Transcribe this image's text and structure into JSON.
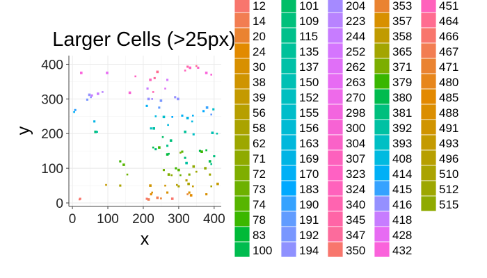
{
  "chart_data": {
    "type": "scatter",
    "title": "Larger Cells (>25px)",
    "xlabel": "x",
    "ylabel": "y",
    "xlim": [
      -10,
      420
    ],
    "ylim": [
      -10,
      425
    ],
    "x_ticks": [
      "0",
      "100",
      "200",
      "300",
      "400"
    ],
    "y_ticks": [
      "0",
      "100",
      "200",
      "300",
      "400"
    ],
    "grid": true,
    "legend_placement": "right",
    "legend_entries": [
      "12",
      "14",
      "20",
      "24",
      "30",
      "38",
      "39",
      "56",
      "58",
      "62",
      "71",
      "72",
      "73",
      "74",
      "78",
      "83",
      "100",
      "101",
      "109",
      "115",
      "135",
      "137",
      "150",
      "152",
      "155",
      "156",
      "163",
      "169",
      "170",
      "183",
      "190",
      "191",
      "192",
      "194",
      "204",
      "223",
      "244",
      "252",
      "262",
      "263",
      "270",
      "298",
      "300",
      "304",
      "307",
      "323",
      "324",
      "340",
      "345",
      "347",
      "350",
      "353",
      "357",
      "358",
      "365",
      "371",
      "379",
      "380",
      "381",
      "392",
      "393",
      "408",
      "414",
      "415",
      "416",
      "418",
      "428",
      "432",
      "451",
      "464",
      "466",
      "467",
      "471",
      "480",
      "485",
      "488",
      "491",
      "493",
      "496",
      "510",
      "512",
      "515"
    ],
    "legend_colors": [
      "#F8766D",
      "#F27D52",
      "#EA8331",
      "#E28A00",
      "#D89000",
      "#CF9400",
      "#C49A00",
      "#B79F00",
      "#AAA300",
      "#9DA700",
      "#8FAA00",
      "#7FAE00",
      "#6DB100",
      "#57B500",
      "#3BB700",
      "#00BA38",
      "#00BC4F",
      "#00BE67",
      "#00C07B",
      "#00C08B",
      "#00C19A",
      "#00C1A7",
      "#00C0B4",
      "#00BFC0",
      "#00BDCA",
      "#00BBD4",
      "#00B8DC",
      "#00B4E4",
      "#00B0F6",
      "#00A9FF",
      "#35A2FF",
      "#619CFF",
      "#7997FF",
      "#8F91FF",
      "#A58AFF",
      "#B883FF",
      "#C77CFF",
      "#D575FE",
      "#E06FF7",
      "#E76BF3",
      "#EE6AEA",
      "#F365DF",
      "#F763D4",
      "#FA62C8",
      "#FD61BD",
      "#FF61C3",
      "#FF62BC",
      "#FF64B0",
      "#FF65A6",
      "#FC6B9C",
      "#F8766D",
      "#EA8331",
      "#D89000",
      "#C09B00",
      "#A3A500",
      "#7CAE00",
      "#39B600",
      "#00BB4E",
      "#00BF7D",
      "#00C1A3",
      "#00BFC4",
      "#00BAE0",
      "#00B0F6",
      "#35A2FF",
      "#9590FF",
      "#C77CFF",
      "#E76BF3",
      "#FA62DB",
      "#FF62BC",
      "#FF6C91",
      "#F8766D",
      "#F27D52",
      "#EA8331",
      "#E7861B",
      "#E38900",
      "#DB8E00",
      "#D09400",
      "#C49A00",
      "#B79F00",
      "#AAA300",
      "#9DA700",
      "#8FAA00",
      "#F8766D"
    ],
    "points": [
      {
        "x": 20,
        "y": 10,
        "c": "#F8766D"
      },
      {
        "x": 22,
        "y": 12,
        "c": "#F8766D"
      },
      {
        "x": 25,
        "y": 375,
        "c": "#FA62DB"
      },
      {
        "x": 5,
        "y": 262,
        "c": "#00B0F6"
      },
      {
        "x": 8,
        "y": 268,
        "c": "#35A2FF"
      },
      {
        "x": 48,
        "y": 312,
        "c": "#9590FF"
      },
      {
        "x": 52,
        "y": 305,
        "c": "#8F91FF"
      },
      {
        "x": 55,
        "y": 310,
        "c": "#C77CFF"
      },
      {
        "x": 72,
        "y": 315,
        "c": "#C77CFF"
      },
      {
        "x": 85,
        "y": 320,
        "c": "#B883FF"
      },
      {
        "x": 42,
        "y": 298,
        "c": "#7997FF"
      },
      {
        "x": 65,
        "y": 205,
        "c": "#00BF7D"
      },
      {
        "x": 70,
        "y": 205,
        "c": "#00C1A3"
      },
      {
        "x": 62,
        "y": 235,
        "c": "#00B4E4"
      },
      {
        "x": 98,
        "y": 375,
        "c": "#E76BF3"
      },
      {
        "x": 95,
        "y": 52,
        "c": "#C49A00"
      },
      {
        "x": 135,
        "y": 50,
        "c": "#AAA300"
      },
      {
        "x": 145,
        "y": 110,
        "c": "#57B500"
      },
      {
        "x": 155,
        "y": 82,
        "c": "#6DB100"
      },
      {
        "x": 135,
        "y": 120,
        "c": "#3BB700"
      },
      {
        "x": 162,
        "y": 318,
        "c": "#F763D4"
      },
      {
        "x": 178,
        "y": 365,
        "c": "#FF61C3"
      },
      {
        "x": 212,
        "y": 330,
        "c": "#C77CFF"
      },
      {
        "x": 215,
        "y": 300,
        "c": "#9590FF"
      },
      {
        "x": 225,
        "y": 300,
        "c": "#A58AFF"
      },
      {
        "x": 210,
        "y": 280,
        "c": "#00B0F6"
      },
      {
        "x": 220,
        "y": 355,
        "c": "#FF62BC"
      },
      {
        "x": 228,
        "y": 320,
        "c": "#FF64B0"
      },
      {
        "x": 232,
        "y": 360,
        "c": "#FC6B9C"
      },
      {
        "x": 240,
        "y": 378,
        "c": "#FF6C91"
      },
      {
        "x": 235,
        "y": 250,
        "c": "#00BAE0"
      },
      {
        "x": 222,
        "y": 215,
        "c": "#00BFC4"
      },
      {
        "x": 230,
        "y": 215,
        "c": "#00C1A3"
      },
      {
        "x": 228,
        "y": 160,
        "c": "#00BB4E"
      },
      {
        "x": 235,
        "y": 155,
        "c": "#00BF7D"
      },
      {
        "x": 245,
        "y": 160,
        "c": "#39B600"
      },
      {
        "x": 255,
        "y": 190,
        "c": "#00BE67"
      },
      {
        "x": 245,
        "y": 275,
        "c": "#619CFF"
      },
      {
        "x": 250,
        "y": 295,
        "c": "#7997FF"
      },
      {
        "x": 262,
        "y": 330,
        "c": "#E06FF7"
      },
      {
        "x": 268,
        "y": 355,
        "c": "#D575FE"
      },
      {
        "x": 258,
        "y": 248,
        "c": "#00BDCA"
      },
      {
        "x": 270,
        "y": 225,
        "c": "#00B8DC"
      },
      {
        "x": 268,
        "y": 165,
        "c": "#00C08B"
      },
      {
        "x": 278,
        "y": 180,
        "c": "#00C07B"
      },
      {
        "x": 282,
        "y": 248,
        "c": "#00A9FF"
      },
      {
        "x": 290,
        "y": 305,
        "c": "#9590FF"
      },
      {
        "x": 298,
        "y": 300,
        "c": "#8F91FF"
      },
      {
        "x": 318,
        "y": 382,
        "c": "#FF62BC"
      },
      {
        "x": 325,
        "y": 393,
        "c": "#FF65A6"
      },
      {
        "x": 332,
        "y": 390,
        "c": "#FF61C3"
      },
      {
        "x": 350,
        "y": 395,
        "c": "#FF6C91"
      },
      {
        "x": 355,
        "y": 390,
        "c": "#FA62C8"
      },
      {
        "x": 378,
        "y": 375,
        "c": "#FA62DB"
      },
      {
        "x": 392,
        "y": 370,
        "c": "#F763D4"
      },
      {
        "x": 310,
        "y": 252,
        "c": "#00B0F6"
      },
      {
        "x": 325,
        "y": 245,
        "c": "#00B4E4"
      },
      {
        "x": 338,
        "y": 235,
        "c": "#00BAE0"
      },
      {
        "x": 342,
        "y": 198,
        "c": "#00BFC4"
      },
      {
        "x": 318,
        "y": 205,
        "c": "#00C19A"
      },
      {
        "x": 340,
        "y": 252,
        "c": "#00B0F6"
      },
      {
        "x": 370,
        "y": 265,
        "c": "#00A9FF"
      },
      {
        "x": 380,
        "y": 275,
        "c": "#35A2FF"
      },
      {
        "x": 392,
        "y": 255,
        "c": "#619CFF"
      },
      {
        "x": 398,
        "y": 270,
        "c": "#00BDCA"
      },
      {
        "x": 395,
        "y": 202,
        "c": "#00C0B4"
      },
      {
        "x": 408,
        "y": 200,
        "c": "#00C1A7"
      },
      {
        "x": 360,
        "y": 150,
        "c": "#00BB4E"
      },
      {
        "x": 365,
        "y": 148,
        "c": "#39B600"
      },
      {
        "x": 378,
        "y": 152,
        "c": "#00BA38"
      },
      {
        "x": 400,
        "y": 135,
        "c": "#00BF7D"
      },
      {
        "x": 388,
        "y": 120,
        "c": "#00BC4F"
      },
      {
        "x": 392,
        "y": 112,
        "c": "#00C08B"
      },
      {
        "x": 318,
        "y": 130,
        "c": "#00BF7D"
      },
      {
        "x": 322,
        "y": 115,
        "c": "#00C1A3"
      },
      {
        "x": 305,
        "y": 145,
        "c": "#7CAE00"
      },
      {
        "x": 310,
        "y": 148,
        "c": "#57B500"
      },
      {
        "x": 268,
        "y": 140,
        "c": "#00BA38"
      },
      {
        "x": 272,
        "y": 142,
        "c": "#00BB4E"
      },
      {
        "x": 258,
        "y": 95,
        "c": "#6DB100"
      },
      {
        "x": 272,
        "y": 82,
        "c": "#7FAE00"
      },
      {
        "x": 280,
        "y": 80,
        "c": "#8FAA00"
      },
      {
        "x": 292,
        "y": 100,
        "c": "#3BB700"
      },
      {
        "x": 300,
        "y": 95,
        "c": "#57B500"
      },
      {
        "x": 305,
        "y": 80,
        "c": "#6DB100"
      },
      {
        "x": 330,
        "y": 82,
        "c": "#7FAE00"
      },
      {
        "x": 342,
        "y": 105,
        "c": "#8FAA00"
      },
      {
        "x": 350,
        "y": 90,
        "c": "#9DA700"
      },
      {
        "x": 322,
        "y": 65,
        "c": "#B79F00"
      },
      {
        "x": 328,
        "y": 55,
        "c": "#AAA300"
      },
      {
        "x": 340,
        "y": 48,
        "c": "#C49A00"
      },
      {
        "x": 330,
        "y": 30,
        "c": "#D89000"
      },
      {
        "x": 335,
        "y": 22,
        "c": "#E28A00"
      },
      {
        "x": 325,
        "y": 25,
        "c": "#EA8331"
      },
      {
        "x": 388,
        "y": 82,
        "c": "#9DA700"
      },
      {
        "x": 375,
        "y": 100,
        "c": "#8FAA00"
      },
      {
        "x": 392,
        "y": 48,
        "c": "#AAA300"
      },
      {
        "x": 378,
        "y": 25,
        "c": "#D89000"
      },
      {
        "x": 410,
        "y": 55,
        "c": "#C49A00"
      },
      {
        "x": 262,
        "y": 50,
        "c": "#CF9400"
      },
      {
        "x": 268,
        "y": 30,
        "c": "#D89000"
      },
      {
        "x": 282,
        "y": 12,
        "c": "#F8766D"
      },
      {
        "x": 295,
        "y": 52,
        "c": "#B79F00"
      },
      {
        "x": 300,
        "y": 48,
        "c": "#AAA300"
      },
      {
        "x": 220,
        "y": 50,
        "c": "#CF9400"
      },
      {
        "x": 225,
        "y": 30,
        "c": "#D89000"
      },
      {
        "x": 222,
        "y": 25,
        "c": "#E28A00"
      },
      {
        "x": 240,
        "y": 15,
        "c": "#F27D52"
      },
      {
        "x": 250,
        "y": 13,
        "c": "#EA8331"
      },
      {
        "x": 210,
        "y": 12,
        "c": "#F8766D"
      },
      {
        "x": 215,
        "y": 10,
        "c": "#F27D52"
      }
    ]
  }
}
